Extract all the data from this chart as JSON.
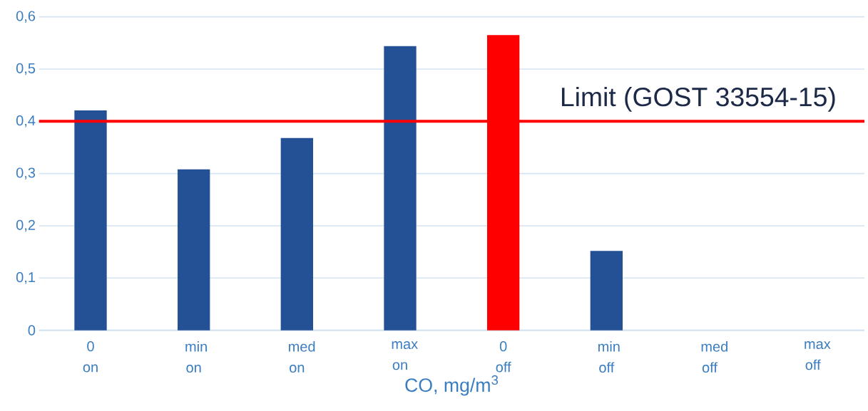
{
  "chart_data": {
    "type": "bar",
    "xlabel": "CO, mg/m$^{3}$",
    "categories": [
      "0 on",
      "min on",
      "med on",
      "max on",
      "0 off",
      "min off",
      "med off",
      "max off"
    ],
    "values": [
      0.421,
      0.308,
      0.368,
      0.544,
      0.565,
      0.152,
      0,
      0
    ],
    "colors": [
      "#245196",
      "#245196",
      "#245196",
      "#245196",
      "#ff0000",
      "#245196",
      "#245196",
      "#245196"
    ],
    "ylim": [
      0,
      0.6
    ],
    "yticks": [
      0,
      {
        "value": 0.1,
        "label": "0,1"
      },
      {
        "value": 0.2,
        "label": "0,2"
      },
      {
        "value": 0.3,
        "label": "0,3"
      },
      {
        "value": 0.4,
        "label": "0,4"
      },
      {
        "value": 0.5,
        "label": "0,5"
      },
      {
        "value": 0.6,
        "label": "0,6"
      }
    ],
    "grid": "y",
    "ref_lines": [
      {
        "axis": "y",
        "value": 0.4,
        "label": "Limit (GOST 33554-15)",
        "color": "#ff0000"
      }
    ]
  }
}
